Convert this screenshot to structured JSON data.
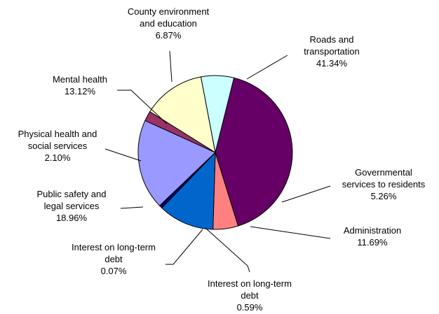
{
  "chart_data": {
    "type": "pie",
    "start_angle_deg": 76,
    "direction": "clockwise",
    "legend": "none",
    "slices": [
      {
        "lines": [
          "Roads and",
          "transportation",
          "41.34%"
        ],
        "value": 41.34,
        "color": "#660066"
      },
      {
        "lines": [
          "Governmental",
          "services to residents",
          "5.26%"
        ],
        "value": 5.26,
        "color": "#FF8080"
      },
      {
        "lines": [
          "Administration",
          "11.69%"
        ],
        "value": 11.69,
        "color": "#0066CC"
      },
      {
        "lines": [
          "Interest on long-term",
          "debt",
          "0.59%"
        ],
        "value": 0.59,
        "color": "#000080"
      },
      {
        "lines": [
          "Interest on long-term",
          "debt",
          "0.07%"
        ],
        "value": 0.07,
        "color": "#FF00FF"
      },
      {
        "lines": [
          "Public safety and",
          "legal services",
          "18.96%"
        ],
        "value": 18.96,
        "color": "#9999FF"
      },
      {
        "lines": [
          "Physical health and",
          "social services",
          "2.10%"
        ],
        "value": 2.1,
        "color": "#993366"
      },
      {
        "lines": [
          "Mental health",
          "13.12%"
        ],
        "value": 13.12,
        "color": "#FFFFCC"
      },
      {
        "lines": [
          "County environment",
          "and education",
          "6.87%"
        ],
        "value": 6.87,
        "color": "#CCFFFF"
      }
    ]
  }
}
